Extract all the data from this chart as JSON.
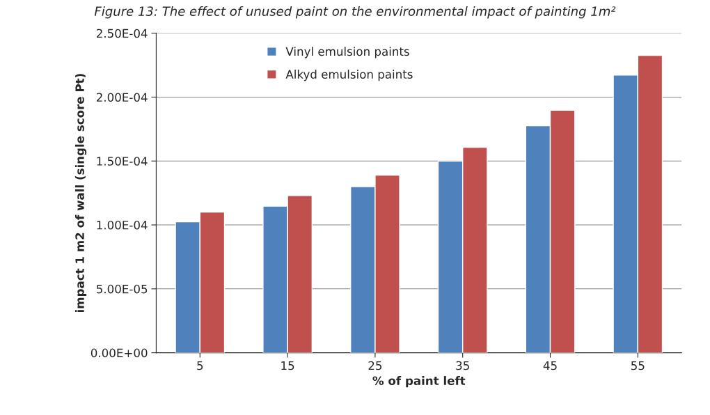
{
  "chart_data": {
    "type": "bar",
    "title": "Figure 13: The effect of unused paint on the environmental impact of painting 1m²",
    "xlabel": "% of paint left",
    "ylabel": "impact 1 m2 of wall (single score Pt)",
    "categories": [
      "5",
      "15",
      "25",
      "35",
      "45",
      "55"
    ],
    "series": [
      {
        "name": "Vinyl emulsion paints",
        "color": "#4f81bd",
        "values": [
          0.0001025,
          0.0001147,
          0.00013,
          0.00015,
          0.0001776,
          0.0002172
        ]
      },
      {
        "name": "Alkyd emulsion paints",
        "color": "#c0504d",
        "values": [
          0.00011,
          0.000123,
          0.000139,
          0.0001607,
          0.0001897,
          0.0002326
        ]
      }
    ],
    "ylim": [
      0,
      0.00025
    ],
    "yticks": [
      {
        "value": 0,
        "label": "0.00E+00"
      },
      {
        "value": 5e-05,
        "label": "5.00E-05"
      },
      {
        "value": 0.0001,
        "label": "1.00E-04"
      },
      {
        "value": 0.00015,
        "label": "1.50E-04"
      },
      {
        "value": 0.0002,
        "label": "2.00E-04"
      },
      {
        "value": 0.00025,
        "label": "2.50E-04"
      }
    ],
    "grid": "y",
    "legend": "top"
  }
}
